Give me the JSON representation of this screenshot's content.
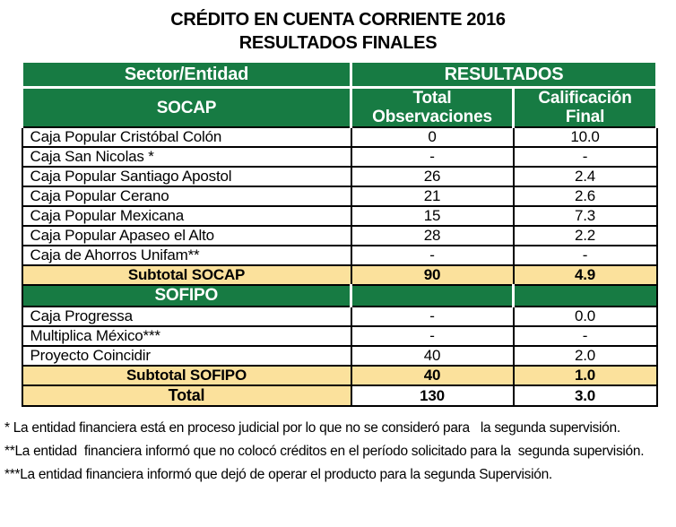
{
  "title": {
    "line1": "CRÉDITO EN CUENTA CORRIENTE 2016",
    "line2": "RESULTADOS FINALES"
  },
  "colors": {
    "header_green": "#177B43",
    "subtotal_yellow": "#FBE19C",
    "header_text": "#FFFFFF",
    "body_text": "#000000"
  },
  "table": {
    "header": {
      "sector_col": "Sector/Entidad",
      "results_group": "RESULTADOS",
      "socap": "SOCAP",
      "total_obs": "Total\nObservaciones",
      "calificacion": "Calificación\nFinal"
    },
    "rows": [
      {
        "name": "Caja Popular Cristóbal Colón",
        "obs": "0",
        "cal": "10.0",
        "type": "data"
      },
      {
        "name": "Caja San Nicolas *",
        "obs": "-",
        "cal": "-",
        "type": "data"
      },
      {
        "name": "Caja Popular Santiago Apostol",
        "obs": "26",
        "cal": "2.4",
        "type": "data"
      },
      {
        "name": "Caja Popular Cerano",
        "obs": "21",
        "cal": "2.6",
        "type": "data"
      },
      {
        "name": "Caja Popular Mexicana",
        "obs": "15",
        "cal": "7.3",
        "type": "data"
      },
      {
        "name": "Caja Popular Apaseo el Alto",
        "obs": "28",
        "cal": "2.2",
        "type": "data"
      },
      {
        "name": "Caja de Ahorros Unifam**",
        "obs": "-",
        "cal": "-",
        "type": "data"
      },
      {
        "name": "Subtotal SOCAP",
        "obs": "90",
        "cal": "4.9",
        "type": "subtotal"
      },
      {
        "name": "SOFIPO",
        "obs": "",
        "cal": "",
        "type": "section"
      },
      {
        "name": "Caja Progressa",
        "obs": "-",
        "cal": "0.0",
        "type": "data"
      },
      {
        "name": "Multiplica México***",
        "obs": "-",
        "cal": "-",
        "type": "data"
      },
      {
        "name": "Proyecto Coincidir",
        "obs": "40",
        "cal": "2.0",
        "type": "data"
      },
      {
        "name": "Subtotal SOFIPO",
        "obs": "40",
        "cal": "1.0",
        "type": "subtotal"
      },
      {
        "name": "Total",
        "obs": "130",
        "cal": "3.0",
        "type": "total"
      }
    ]
  },
  "footnotes": [
    "* La entidad financiera está en proceso judicial por lo que no se consideró para   la segunda supervisión.",
    "**La entidad  financiera informó que no colocó créditos en el período solicitado para la  segunda supervisión.",
    "***La entidad financiera informó que dejó de operar el producto para la segunda Supervisión."
  ]
}
